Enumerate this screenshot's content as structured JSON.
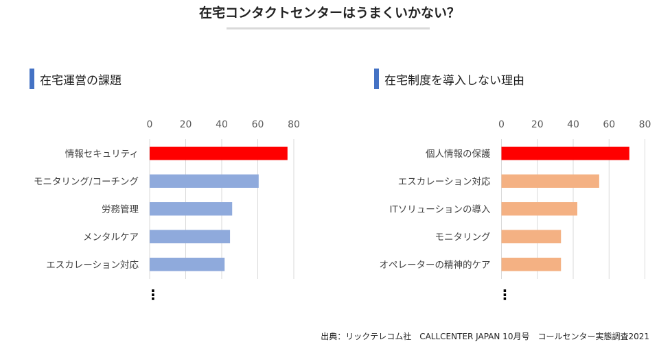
{
  "title": "在宅コンタクトセンターはうまくいかない？",
  "source": "出典：リックテレコム社　CALLCENTER JAPAN 10月号　コールセンター実態調査2021",
  "chart_data": [
    {
      "type": "bar",
      "orientation": "horizontal",
      "title": "在宅運営の課題",
      "categories": [
        "情報セキュリティ",
        "モニタリング/コーチング",
        "労務管理",
        "メンタルケア",
        "エスカレーション対応"
      ],
      "values": [
        76.5,
        60.5,
        45.8,
        44.6,
        41.6
      ],
      "colors": [
        "#ff0000",
        "#8faadc",
        "#8faadc",
        "#8faadc",
        "#8faadc"
      ],
      "xlim": [
        0,
        80
      ],
      "ticks": [
        0,
        20,
        40,
        60,
        80
      ],
      "grid": true,
      "continuation": "⋮"
    },
    {
      "type": "bar",
      "orientation": "horizontal",
      "title": "在宅制度を導入しない理由",
      "categories": [
        "個人情報の保護",
        "エスカレーション対応",
        "ITソリューションの導入",
        "モニタリング",
        "オペレーターの精神的ケア"
      ],
      "values": [
        71.3,
        54.5,
        42.3,
        33.2,
        33.2
      ],
      "colors": [
        "#ff0000",
        "#f4b183",
        "#f4b183",
        "#f4b183",
        "#f4b183"
      ],
      "xlim": [
        0,
        80
      ],
      "ticks": [
        0,
        20,
        40,
        60,
        80
      ],
      "grid": true,
      "continuation": "⋮"
    }
  ]
}
